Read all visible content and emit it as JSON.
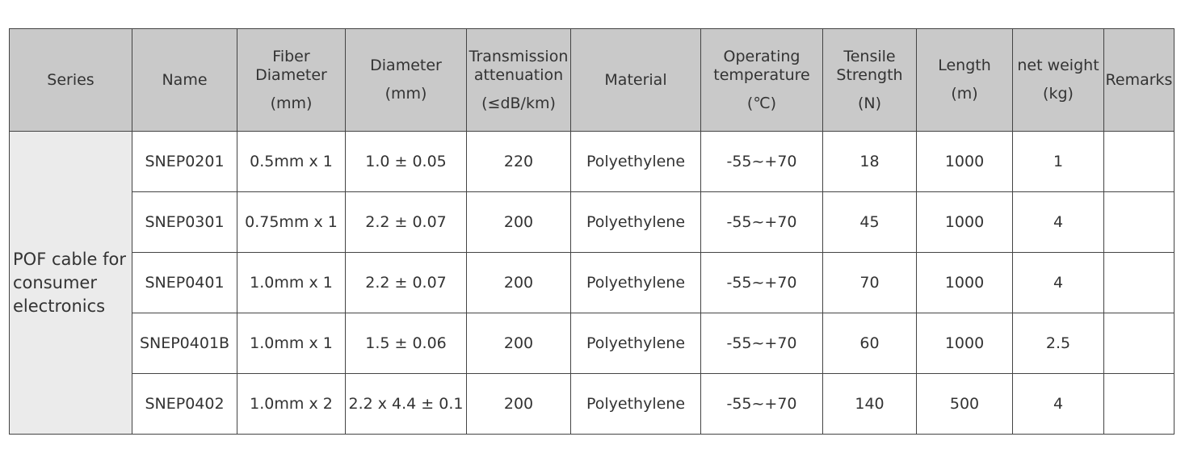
{
  "table": {
    "headers": [
      [
        "Series"
      ],
      [
        "Name"
      ],
      [
        "Fiber",
        "Diameter",
        "(mm)"
      ],
      [
        "Diameter",
        "(mm)"
      ],
      [
        "Transmission",
        "attenuation",
        "(≤dB/km)"
      ],
      [
        "Material"
      ],
      [
        "Operating",
        "temperature",
        "(℃)"
      ],
      [
        "Tensile",
        "Strength",
        "(N)"
      ],
      [
        "Length",
        "(m)"
      ],
      [
        "net weight",
        "(kg)"
      ],
      [
        "Remarks"
      ]
    ],
    "series": "POF cable for consumer electronics",
    "rows": [
      [
        "SNEP0201",
        "0.5mm x 1",
        "1.0 ± 0.05",
        220,
        "Polyethylene",
        "-55~+70",
        18,
        1000,
        1
      ],
      [
        "SNEP0301",
        "0.75mm x 1",
        "2.2 ± 0.07",
        200,
        "Polyethylene",
        "-55~+70",
        45,
        1000,
        4
      ],
      [
        "SNEP0401",
        "1.0mm x 1",
        "2.2 ± 0.07",
        200,
        "Polyethylene",
        "-55~+70",
        70,
        1000,
        4
      ],
      [
        "SNEP0401B",
        "1.0mm x 1",
        "1.5 ± 0.06",
        200,
        "Polyethylene",
        "-55~+70",
        60,
        1000,
        2.5
      ],
      [
        "SNEP0402",
        "1.0mm x 2",
        "2.2 x 4.4 ± 0.1",
        200,
        "Polyethylene",
        "-55~+70",
        140,
        500,
        4
      ]
    ]
  }
}
